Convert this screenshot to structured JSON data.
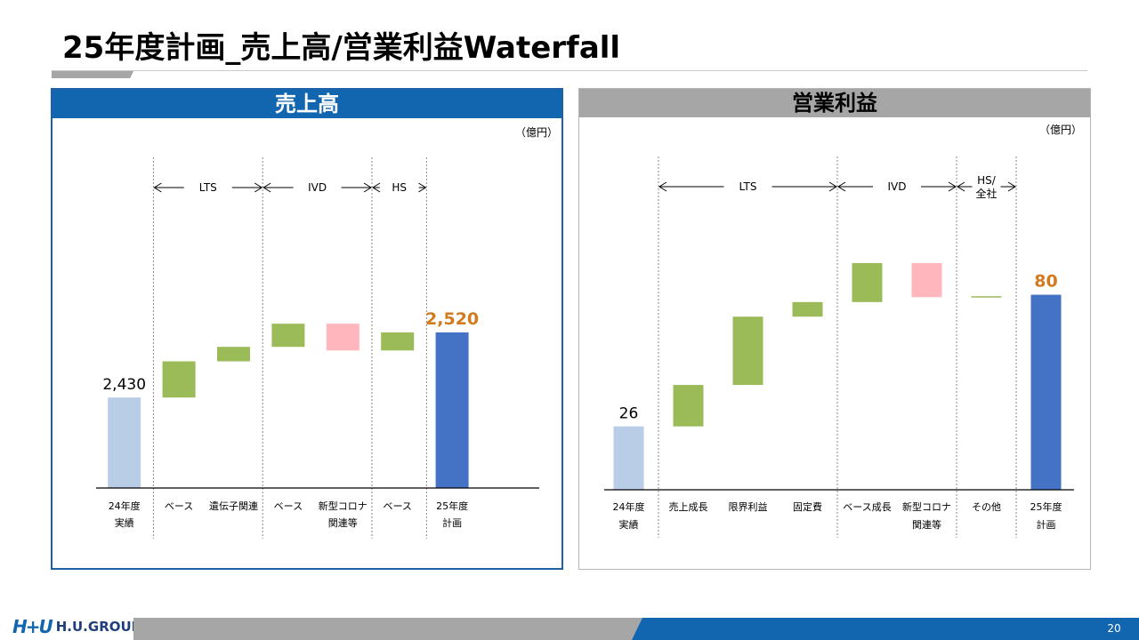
{
  "title": "25年度計画_売上高/営業利益Waterfall",
  "footer": {
    "logo_mark": "H+U",
    "logo_text": "H.U.GROUP",
    "page_number": "20"
  },
  "colors": {
    "start_bar": "#b9cde6",
    "end_bar": "#4472c4",
    "increase": "#9bbb59",
    "decrease": "#ffb6bd",
    "end_label": "#d27a1e",
    "header_blue": "#1266b0",
    "header_gray": "#a6a6a6"
  },
  "chart_data": [
    {
      "type": "waterfall",
      "title": "売上高",
      "unit": "（億円）",
      "categories": [
        [
          "24年度",
          "実績"
        ],
        [
          "ベース"
        ],
        [
          "遺伝子関連"
        ],
        [
          "ベース"
        ],
        [
          "新型コロナ",
          "関連等"
        ],
        [
          "ベース"
        ],
        [
          "25年度",
          "計画"
        ]
      ],
      "steps": [
        {
          "kind": "total",
          "value": 2430,
          "label": "2,430"
        },
        {
          "kind": "delta",
          "value": 50
        },
        {
          "kind": "delta",
          "value": 20
        },
        {
          "kind": "delta",
          "value": 32
        },
        {
          "kind": "delta",
          "value": -37
        },
        {
          "kind": "delta",
          "value": 25
        },
        {
          "kind": "total",
          "value": 2520,
          "label": "2,520"
        }
      ],
      "segments": [
        {
          "label": "LTS",
          "from": 1,
          "to": 3
        },
        {
          "label": "IVD",
          "from": 3,
          "to": 5
        },
        {
          "label": "HS",
          "from": 5,
          "to": 6
        }
      ],
      "ylim": [
        2305,
        2655
      ]
    },
    {
      "type": "waterfall",
      "title": "営業利益",
      "unit": "（億円）",
      "categories": [
        [
          "24年度",
          "実績"
        ],
        [
          "売上成長"
        ],
        [
          "限界利益"
        ],
        [
          "固定費"
        ],
        [
          "ベース成長"
        ],
        [
          "新型コロナ",
          "関連等"
        ],
        [
          "その他"
        ],
        [
          "25年度",
          "計画"
        ]
      ],
      "steps": [
        {
          "kind": "total",
          "value": 26,
          "label": "26"
        },
        {
          "kind": "delta",
          "value": 17
        },
        {
          "kind": "delta",
          "value": 28
        },
        {
          "kind": "delta",
          "value": 6
        },
        {
          "kind": "delta",
          "value": 16
        },
        {
          "kind": "delta",
          "value": -14
        },
        {
          "kind": "delta",
          "value": 0.4
        },
        {
          "kind": "total",
          "value": 80,
          "label": "80"
        }
      ],
      "segments": [
        {
          "label": "LTS",
          "from": 1,
          "to": 4
        },
        {
          "label": "IVD",
          "from": 4,
          "to": 6
        },
        {
          "label": "HS/ 全社",
          "lines": [
            "HS/",
            "全社"
          ],
          "from": 6,
          "to": 7
        }
      ],
      "ylim": [
        0,
        105
      ]
    }
  ]
}
